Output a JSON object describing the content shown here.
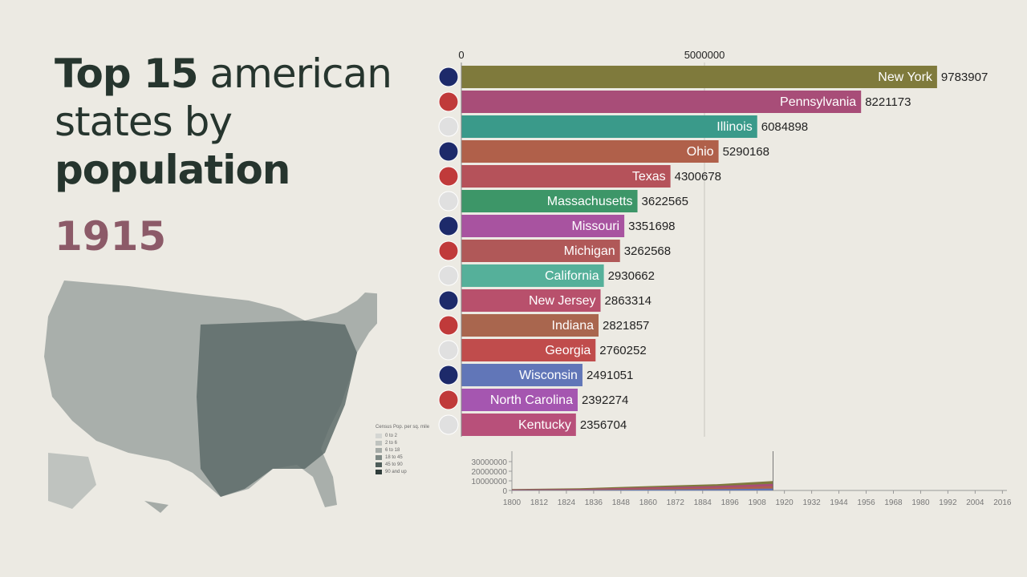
{
  "title": {
    "bold1": "Top 15",
    "rest1": " american",
    "line2": "states by",
    "bold3": "population"
  },
  "year": "1915",
  "map_legend": {
    "title": "Census Pop. per sq. mile",
    "items": [
      {
        "label": "0 to 2",
        "color": "#d4d6d3"
      },
      {
        "label": "2 to 6",
        "color": "#bfc3bf"
      },
      {
        "label": "6 to 18",
        "color": "#a5aba7"
      },
      {
        "label": "18 to 45",
        "color": "#7d8884"
      },
      {
        "label": "45 to 90",
        "color": "#4e5d5a"
      },
      {
        "label": "90 and up",
        "color": "#2f3d3b"
      }
    ]
  },
  "chart_data": [
    {
      "type": "bar",
      "orientation": "horizontal",
      "title": "",
      "x_ticks": [
        0,
        5000000
      ],
      "xlim": [
        0,
        10000000
      ],
      "categories": [
        "New York",
        "Pennsylvania",
        "Illinois",
        "Ohio",
        "Texas",
        "Massachusetts",
        "Missouri",
        "Michigan",
        "California",
        "New Jersey",
        "Indiana",
        "Georgia",
        "Wisconsin",
        "North Carolina",
        "Kentucky"
      ],
      "values": [
        9783907,
        8221173,
        6084898,
        5290168,
        4300678,
        3622565,
        3351698,
        3262568,
        2930662,
        2863314,
        2821857,
        2760252,
        2491051,
        2392274,
        2356704
      ],
      "colors": [
        "#7f7a3c",
        "#a84d78",
        "#3a9a8a",
        "#b0604a",
        "#b5525a",
        "#3d9668",
        "#a853a0",
        "#b05858",
        "#55b09a",
        "#b8506c",
        "#a9664e",
        "#c04c4c",
        "#6176b8",
        "#a556b0",
        "#b8507a"
      ],
      "icons": [
        "flag-new-york",
        "flag-pennsylvania",
        "flag-illinois",
        "flag-ohio",
        "flag-texas",
        "flag-massachusetts",
        "flag-missouri",
        "flag-michigan",
        "flag-california",
        "flag-new-jersey",
        "flag-indiana",
        "flag-georgia",
        "flag-wisconsin",
        "flag-north-carolina",
        "flag-kentucky"
      ]
    },
    {
      "type": "area",
      "stacked": true,
      "y_ticks": [
        0,
        10000000,
        20000000,
        30000000
      ],
      "x_ticks": [
        1800,
        1812,
        1824,
        1836,
        1848,
        1860,
        1872,
        1884,
        1896,
        1908,
        1920,
        1932,
        1944,
        1956,
        1968,
        1980,
        1992,
        2004,
        2016
      ],
      "xlim": [
        1800,
        2018
      ],
      "current_year": 1915,
      "x": [
        1800,
        1830,
        1860,
        1890,
        1915
      ],
      "total_top": [
        1500000,
        2300000,
        4500000,
        6500000,
        9800000
      ]
    }
  ]
}
